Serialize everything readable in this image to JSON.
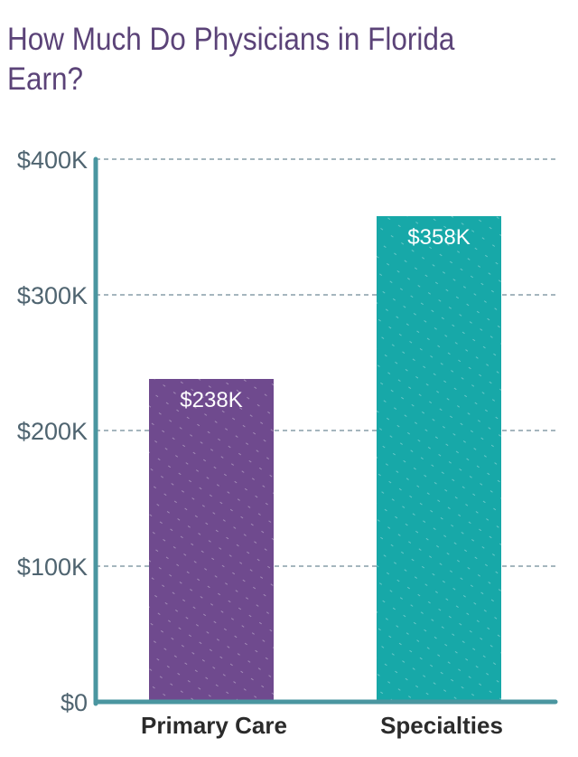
{
  "chart_data": {
    "type": "bar",
    "title": "How Much Do Physicians in Florida Earn?",
    "categories": [
      "Primary Care",
      "Specialties"
    ],
    "values": [
      238,
      358
    ],
    "data_labels": [
      "$238K",
      "$358K"
    ],
    "ylim": [
      0,
      400
    ],
    "yticks": [
      0,
      100,
      200,
      300,
      400
    ],
    "ytick_labels": [
      "$0",
      "$100K",
      "$200K",
      "$300K",
      "$400K"
    ],
    "grid": true,
    "legend": "none",
    "colors": [
      "#6f4a8e",
      "#17a8a8"
    ],
    "axis_color": "#4a96a0"
  }
}
